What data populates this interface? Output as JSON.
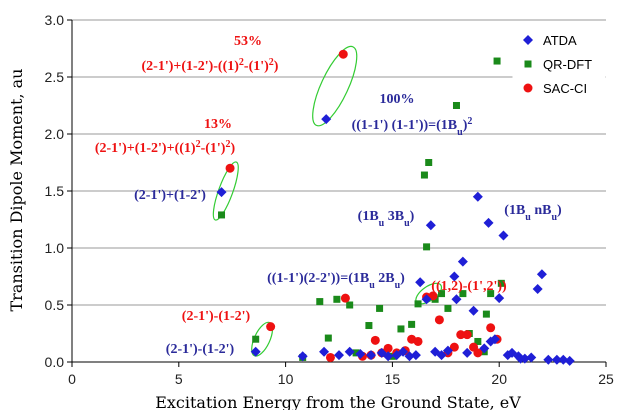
{
  "chart_data": {
    "type": "scatter",
    "xlabel": "Excitation Energy from the Ground State, eV",
    "ylabel": "Transition Dipole Moment, au",
    "xlim": [
      0,
      25
    ],
    "ylim": [
      0,
      3.0
    ],
    "x_ticks": [
      "0",
      "5",
      "10",
      "15",
      "20",
      "25"
    ],
    "y_ticks": [
      "0.0",
      "0.5",
      "1.0",
      "1.5",
      "2.0",
      "2.5",
      "3.0"
    ],
    "grid": "horizontal",
    "legend_position": "top-right",
    "series": [
      {
        "name": "ATDA",
        "marker": "diamond",
        "color": "#1f1fd6",
        "points": [
          [
            7.0,
            1.49
          ],
          [
            8.6,
            0.09
          ],
          [
            10.8,
            0.05
          ],
          [
            11.8,
            0.09
          ],
          [
            11.9,
            2.13
          ],
          [
            12.5,
            0.06
          ],
          [
            13.0,
            0.09
          ],
          [
            13.5,
            0.07
          ],
          [
            14.0,
            0.06
          ],
          [
            14.5,
            0.08
          ],
          [
            14.8,
            0.05
          ],
          [
            15.2,
            0.06
          ],
          [
            15.5,
            0.09
          ],
          [
            15.8,
            0.05
          ],
          [
            16.1,
            0.06
          ],
          [
            16.3,
            0.7
          ],
          [
            16.6,
            0.55
          ],
          [
            16.8,
            1.2
          ],
          [
            17.0,
            0.09
          ],
          [
            17.3,
            0.06
          ],
          [
            17.6,
            0.1
          ],
          [
            17.9,
            0.75
          ],
          [
            18.0,
            0.55
          ],
          [
            18.3,
            0.88
          ],
          [
            18.5,
            0.08
          ],
          [
            18.8,
            0.45
          ],
          [
            19.0,
            1.45
          ],
          [
            19.3,
            0.12
          ],
          [
            19.5,
            1.22
          ],
          [
            19.8,
            0.2
          ],
          [
            20.0,
            0.56
          ],
          [
            20.2,
            1.11
          ],
          [
            20.4,
            0.06
          ],
          [
            20.6,
            0.08
          ],
          [
            20.9,
            0.05
          ],
          [
            21.2,
            0.03
          ],
          [
            21.5,
            0.04
          ],
          [
            21.8,
            0.64
          ],
          [
            22.0,
            0.77
          ],
          [
            22.3,
            0.02
          ],
          [
            22.7,
            0.02
          ],
          [
            23.0,
            0.02
          ],
          [
            23.3,
            0.01
          ],
          [
            21.0,
            0.03
          ],
          [
            19.6,
            0.18
          ]
        ]
      },
      {
        "name": "QR-DFT",
        "marker": "square",
        "color": "#1a8a1a",
        "points": [
          [
            7.0,
            1.29
          ],
          [
            8.6,
            0.2
          ],
          [
            10.8,
            0.04
          ],
          [
            11.6,
            0.53
          ],
          [
            12.0,
            0.21
          ],
          [
            12.4,
            0.55
          ],
          [
            13.0,
            0.5
          ],
          [
            13.3,
            0.08
          ],
          [
            13.9,
            0.32
          ],
          [
            14.4,
            0.47
          ],
          [
            15.0,
            0.05
          ],
          [
            15.4,
            0.29
          ],
          [
            15.9,
            0.33
          ],
          [
            16.2,
            0.51
          ],
          [
            16.5,
            1.64
          ],
          [
            16.7,
            1.75
          ],
          [
            16.6,
            1.01
          ],
          [
            17.0,
            0.55
          ],
          [
            17.3,
            0.6
          ],
          [
            17.6,
            0.47
          ],
          [
            18.0,
            2.25
          ],
          [
            18.3,
            0.6
          ],
          [
            18.6,
            0.25
          ],
          [
            19.0,
            0.18
          ],
          [
            19.3,
            0.09
          ],
          [
            19.6,
            0.6
          ],
          [
            19.9,
            2.64
          ],
          [
            20.1,
            0.69
          ],
          [
            19.4,
            0.42
          ]
        ]
      },
      {
        "name": "SAC-CI",
        "marker": "circle",
        "color": "#ee1111",
        "points": [
          [
            7.4,
            1.7
          ],
          [
            9.3,
            0.31
          ],
          [
            12.1,
            0.04
          ],
          [
            12.7,
            2.7
          ],
          [
            12.8,
            0.56
          ],
          [
            13.6,
            0.05
          ],
          [
            14.0,
            0.06
          ],
          [
            14.2,
            0.19
          ],
          [
            14.5,
            0.08
          ],
          [
            14.8,
            0.12
          ],
          [
            15.2,
            0.08
          ],
          [
            15.6,
            0.1
          ],
          [
            15.9,
            0.2
          ],
          [
            16.2,
            0.18
          ],
          [
            16.6,
            0.57
          ],
          [
            16.9,
            0.58
          ],
          [
            17.2,
            0.37
          ],
          [
            17.6,
            0.08
          ],
          [
            17.9,
            0.13
          ],
          [
            18.2,
            0.24
          ],
          [
            18.5,
            0.24
          ],
          [
            18.8,
            0.13
          ],
          [
            19.0,
            0.08
          ],
          [
            19.6,
            0.3
          ],
          [
            19.9,
            0.2
          ]
        ]
      }
    ],
    "annotations": [
      {
        "id": "a53",
        "text": "53%",
        "color": "#ee1111",
        "bold": true
      },
      {
        "id": "a53expr",
        "color": "#ee1111",
        "bold": true,
        "parts": [
          [
            "(2-1')+(1-2')-((1)",
            "n"
          ],
          [
            "2",
            "sup"
          ],
          [
            "-(1')",
            "n"
          ],
          [
            "2",
            "sup"
          ],
          [
            ")",
            "n"
          ]
        ]
      },
      {
        "id": "a100",
        "text": "100%",
        "color": "#2a2a9a",
        "bold": true
      },
      {
        "id": "a100expr",
        "color": "#2a2a9a",
        "bold": true,
        "parts": [
          [
            "((1-1') (1-1'))=(1B",
            "n"
          ],
          [
            "u",
            "sub"
          ],
          [
            ")",
            "n"
          ],
          [
            "2",
            "sup"
          ]
        ]
      },
      {
        "id": "a13",
        "text": "13%",
        "color": "#ee1111",
        "bold": true
      },
      {
        "id": "a13expr",
        "color": "#ee1111",
        "bold": true,
        "parts": [
          [
            "(2-1')+(1-2')+((1)",
            "n"
          ],
          [
            "2",
            "sup"
          ],
          [
            "-(1')",
            "n"
          ],
          [
            "2",
            "sup"
          ],
          [
            ")",
            "n"
          ]
        ]
      },
      {
        "id": "aplus",
        "text": "(2-1')+(1-2')",
        "color": "#2a2a9a",
        "bold": true
      },
      {
        "id": "a3bu",
        "color": "#2a2a9a",
        "bold": true,
        "parts": [
          [
            "(1B",
            "n"
          ],
          [
            "u",
            "sub"
          ],
          [
            " 3B",
            "n"
          ],
          [
            "u",
            "sub"
          ],
          [
            ")",
            "n"
          ]
        ]
      },
      {
        "id": "anbu",
        "color": "#2a2a9a",
        "bold": true,
        "parts": [
          [
            "(1B",
            "n"
          ],
          [
            "u",
            "sub"
          ],
          [
            " nB",
            "n"
          ],
          [
            "u",
            "sub"
          ],
          [
            ")",
            "n"
          ]
        ]
      },
      {
        "id": "a2bu",
        "color": "#2a2a9a",
        "bold": true,
        "parts": [
          [
            "((1-1')(2-2'))=(1B",
            "n"
          ],
          [
            "u",
            "sub"
          ],
          [
            " 2B",
            "n"
          ],
          [
            "u",
            "sub"
          ],
          [
            ")",
            "n"
          ]
        ]
      },
      {
        "id": "a12",
        "text": "((1,2)-(1',2'))",
        "color": "#ee1111",
        "bold": true
      },
      {
        "id": "aminusR",
        "text": "(2-1')-(1-2')",
        "color": "#ee1111",
        "bold": true
      },
      {
        "id": "aminusB",
        "text": "(2-1')-(1-2')",
        "color": "#2a2a9a",
        "bold": true
      }
    ],
    "ellipses": [
      {
        "cx": 12.3,
        "cy": 2.42,
        "rx": 1.05,
        "ry": 0.38,
        "rot": -65
      },
      {
        "cx": 7.2,
        "cy": 1.5,
        "rx": 0.55,
        "ry": 0.27,
        "rot": -70
      },
      {
        "cx": 8.9,
        "cy": 0.2,
        "rx": 0.6,
        "ry": 0.16,
        "rot": -65
      },
      {
        "cx": 16.7,
        "cy": 0.6,
        "rx": 0.55,
        "ry": 0.13,
        "rot": -35
      }
    ]
  }
}
